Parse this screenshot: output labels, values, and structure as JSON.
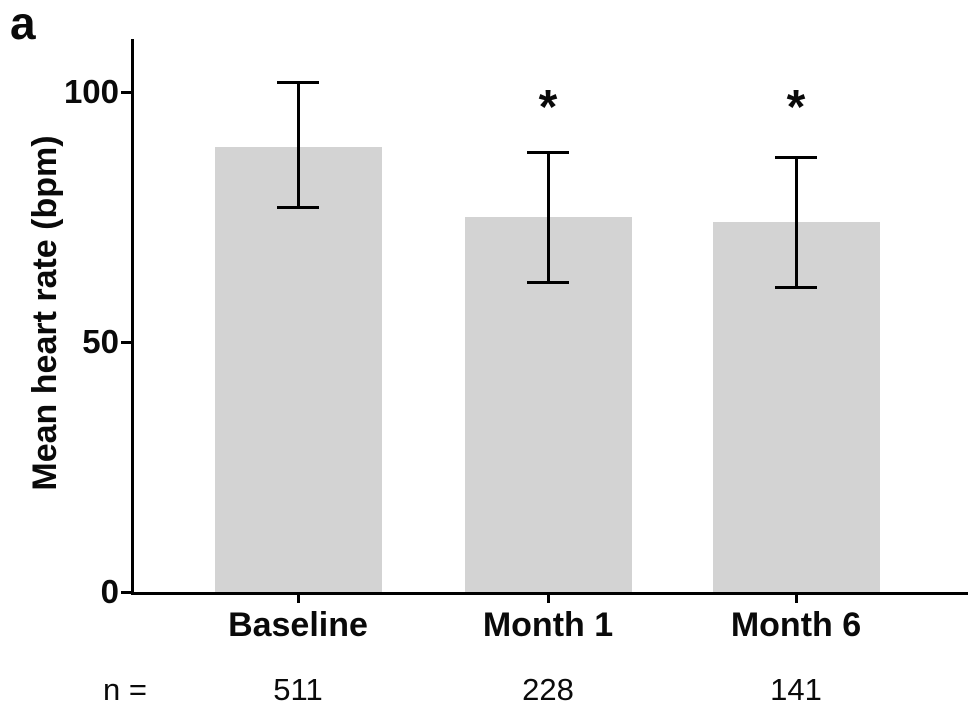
{
  "panel_label": "a",
  "chart_data": {
    "type": "bar",
    "title": "",
    "xlabel": "",
    "ylabel": "Mean heart rate (bpm)",
    "ylim": [
      0,
      110
    ],
    "yticks": [
      0,
      50,
      100
    ],
    "grid": false,
    "legend": null,
    "bar_color": "#d3d3d3",
    "axis_color": "#000000",
    "categories": [
      "Baseline",
      "Month 1",
      "Month 6"
    ],
    "values": [
      89,
      75,
      74
    ],
    "error_upper": [
      102,
      88,
      87
    ],
    "error_lower": [
      77,
      62,
      61
    ],
    "significance": [
      "",
      "*",
      "*"
    ],
    "n_label": "n =",
    "n_values": [
      "511",
      "228",
      "141"
    ]
  }
}
